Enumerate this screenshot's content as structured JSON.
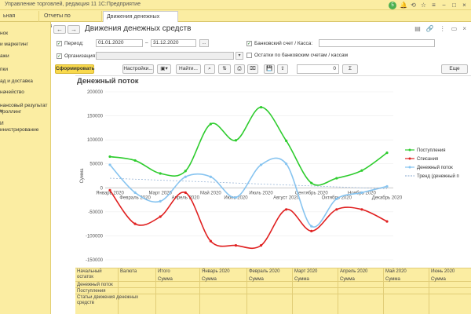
{
  "app": {
    "title": "Управление торговлей, редакция 11 1С:Предприятие",
    "notification_count": "5"
  },
  "tabs": [
    {
      "label": "ьная страница"
    },
    {
      "label": "Отчеты по казначейству"
    },
    {
      "label": "Движения денежных средств",
      "close": "×"
    }
  ],
  "sidebar": {
    "items": [
      {
        "label": "нок"
      },
      {
        "label": "и маркетинг"
      },
      {
        "label": "ажи"
      },
      {
        "label": "пки"
      },
      {
        "label": "ад и доставка"
      },
      {
        "label": "начейство"
      },
      {
        "label": "нансовый результат и"
      },
      {
        "label": "троллинг"
      },
      {
        "label": "И"
      },
      {
        "label": "инистрирование"
      }
    ]
  },
  "form": {
    "title": "Движения денежных средств",
    "period_label": "Период:",
    "date_from": "01.01.2020",
    "date_to": "31.12.2020",
    "dash": "–",
    "pick": "...",
    "bank_label": "Банковский счет / Касса:",
    "org_label": "Организация:",
    "balances_label": "Остатки по банковским счетам / кассам"
  },
  "toolbar": {
    "generate": "Сформировать",
    "settings": "Настройки...",
    "find": "Найти...",
    "number": "0",
    "sigma": "Σ",
    "more": "Еще"
  },
  "report": {
    "title": "Денежный поток"
  },
  "chart_data": {
    "type": "line",
    "ylabel": "Сумма",
    "ylim": [
      -150000,
      200000
    ],
    "yticks": [
      200000,
      150000,
      100000,
      50000,
      0,
      -50000,
      -100000,
      -150000
    ],
    "categories": [
      "Январь 2020",
      "Февраль 2020",
      "Март 2020",
      "Апрель 2020",
      "Май 2020",
      "Июнь 2020",
      "Июль 2020",
      "Август 2020",
      "Сентябрь 2020",
      "Октябрь 2020",
      "Ноябрь 2020",
      "Декабрь 2020"
    ],
    "series": [
      {
        "name": "Поступления",
        "color": "#2ecc2e",
        "values": [
          65000,
          57000,
          30000,
          35000,
          133000,
          99000,
          168000,
          98000,
          10000,
          20000,
          36000,
          73000
        ]
      },
      {
        "name": "Списания",
        "color": "#e02020",
        "values": [
          -5000,
          -75000,
          -60000,
          -10000,
          -111000,
          -120000,
          -120000,
          -45000,
          -90000,
          -45000,
          -45000,
          -70000
        ]
      },
      {
        "name": "Денежный поток",
        "color": "#87c4f0",
        "values": [
          48000,
          -10000,
          -28000,
          23000,
          23000,
          -20000,
          48000,
          50000,
          -80000,
          -23000,
          -10000,
          3000
        ]
      },
      {
        "name": "Тренд (денежный п",
        "color": "#9ab6d6",
        "dashed": true,
        "values": [
          20000,
          18000,
          16000,
          14000,
          12000,
          10000,
          8000,
          6000,
          4000,
          2000,
          0,
          -2000
        ]
      }
    ]
  },
  "table": {
    "col_headers": [
      "Начальный остаток",
      "Валюта",
      "Итого",
      "Январь 2020",
      "Февраль 2020",
      "Март 2020",
      "Апрель 2020",
      "Май 2020",
      "Июнь 2020"
    ],
    "row_labels": [
      "Денежный поток",
      "Поступления",
      "Статьи движения денежных средств"
    ],
    "sum_label": "Сумма"
  }
}
